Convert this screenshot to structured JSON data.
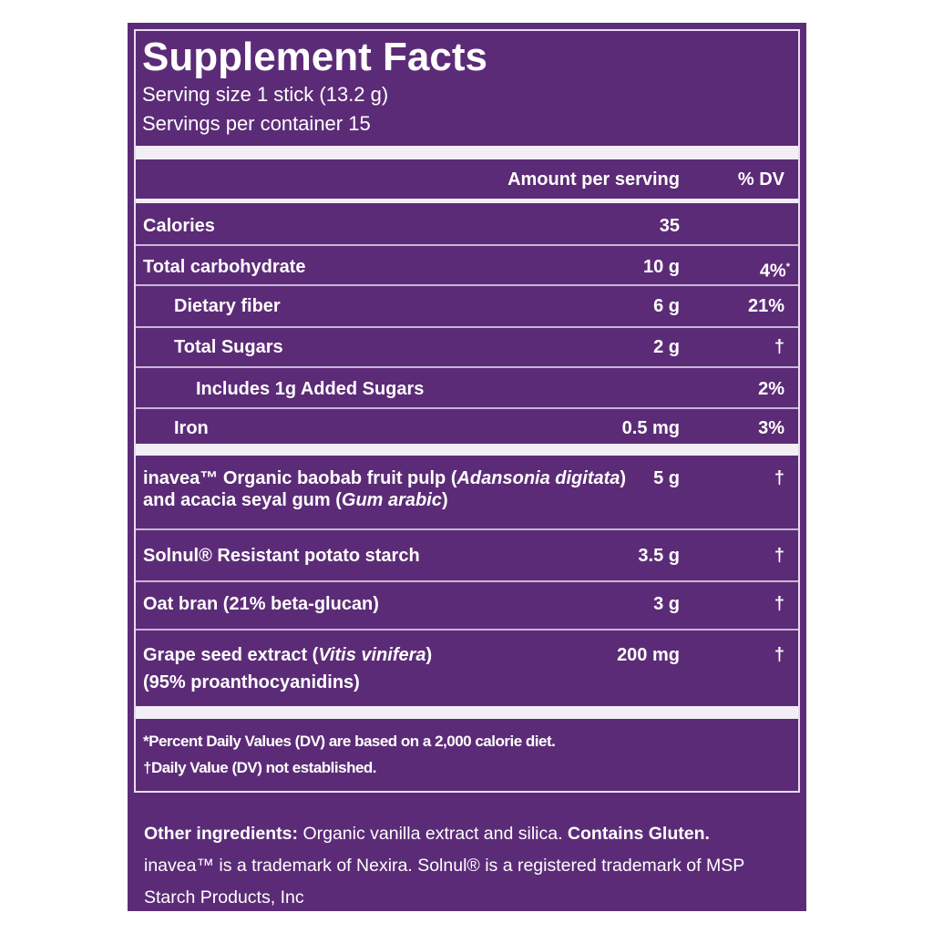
{
  "header": {
    "title": "Supplement Facts",
    "serving_size": "Serving size 1 stick (13.2 g)",
    "servings_per_container": "Servings per container 15"
  },
  "table": {
    "columns": [
      "Amount per serving",
      "% DV"
    ],
    "rows": [
      {
        "name": "Calories",
        "amount": "35"
      },
      {
        "name": "Total carbohydrate",
        "amount": "10 g",
        "dv": "4%",
        "dv_note": "*"
      },
      {
        "name": "Dietary fiber",
        "amount": "6 g",
        "dv": "21%"
      },
      {
        "name": "Total Sugars",
        "amount": "2 g",
        "dv": "†"
      },
      {
        "name": "Includes 1g Added Sugars",
        "dv": "2%"
      },
      {
        "name": "Iron",
        "amount": "0.5 mg",
        "dv": "3%"
      },
      {
        "name": [
          [
            "inavea™ Organic baobab fruit pulp (",
            "Adansonia digitata",
            ")"
          ],
          [
            "and acacia seyal gum (",
            "Gum arabic",
            ")"
          ]
        ],
        "amount": "5 g",
        "dv": "†"
      },
      {
        "name": "Solnul® Resistant potato starch",
        "amount": "3.5 g",
        "dv": "†"
      },
      {
        "name": "Oat bran (21% beta-glucan)",
        "amount": "3 g",
        "dv": "†"
      },
      {
        "name": [
          [
            "Grape seed extract (",
            "Vitis vinifera",
            ")"
          ],
          [
            "(95% proanthocyanidins)"
          ]
        ],
        "amount": "200 mg",
        "dv": "†"
      }
    ]
  },
  "footnotes": [
    "*Percent Daily Values (DV) are based on a 2,000 calorie diet.",
    "†Daily Value (DV) not established."
  ],
  "other_ingredients": [
    "Other ingredients:",
    " Organic vanilla extract and silica. ",
    "Contains Gluten.",
    "inavea™ is a trademark of Nexira. Solnul® is a registered trademark of MSP Starch Products, Inc"
  ]
}
